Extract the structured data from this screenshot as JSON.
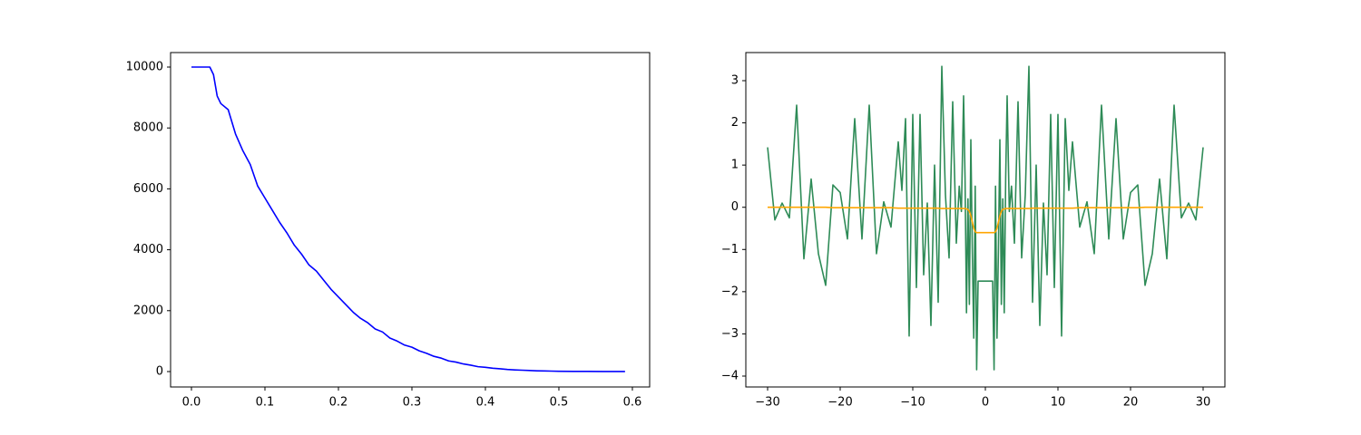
{
  "chart_data": [
    {
      "type": "line",
      "x": [
        0,
        0.01,
        0.02,
        0.025,
        0.03,
        0.035,
        0.04,
        0.05,
        0.06,
        0.07,
        0.08,
        0.09,
        0.1,
        0.11,
        0.12,
        0.13,
        0.14,
        0.15,
        0.16,
        0.17,
        0.18,
        0.19,
        0.2,
        0.21,
        0.22,
        0.23,
        0.24,
        0.25,
        0.26,
        0.27,
        0.28,
        0.29,
        0.3,
        0.31,
        0.32,
        0.33,
        0.34,
        0.35,
        0.36,
        0.37,
        0.38,
        0.39,
        0.4,
        0.41,
        0.42,
        0.43,
        0.44,
        0.45,
        0.46,
        0.47,
        0.48,
        0.49,
        0.5,
        0.52,
        0.54,
        0.56,
        0.59
      ],
      "series": [
        {
          "color": "#0000ff",
          "values": [
            10000,
            10000,
            10000,
            10000,
            9750,
            9050,
            8800,
            8600,
            7800,
            7250,
            6800,
            6100,
            5700,
            5300,
            4900,
            4550,
            4150,
            3850,
            3500,
            3300,
            3000,
            2700,
            2450,
            2200,
            1950,
            1750,
            1600,
            1400,
            1300,
            1100,
            1000,
            870,
            800,
            680,
            600,
            500,
            440,
            350,
            310,
            250,
            210,
            160,
            140,
            110,
            90,
            70,
            55,
            45,
            35,
            25,
            20,
            15,
            10,
            6,
            4,
            2,
            1
          ]
        }
      ],
      "xlim": [
        -0.0284,
        0.6235
      ],
      "ylim": [
        -506,
        10476
      ],
      "xticks": [
        {
          "value": 0,
          "label": "0.0"
        },
        0.1,
        0.2,
        0.3,
        0.4,
        0.5,
        0.6
      ],
      "yticks": [
        0,
        2000,
        4000,
        6000,
        8000,
        10000
      ],
      "grid": false
    },
    {
      "type": "line",
      "x": [
        -30,
        -29,
        -28,
        -27,
        -26,
        -25,
        -24,
        -23,
        -22,
        -21,
        -20,
        -19,
        -18,
        -17,
        -16,
        -15,
        -14,
        -13,
        -12,
        -11.5,
        -11,
        -10.5,
        -10,
        -9.5,
        -9,
        -8.5,
        -8,
        -7.5,
        -7,
        -6.5,
        -6,
        -5.5,
        -5,
        -4.5,
        -4,
        -3.6,
        -3.3,
        -3,
        -2.8,
        -2.6,
        -2.4,
        -2.2,
        -2,
        -1.8,
        -1.6,
        -1.4,
        -1.2,
        -1,
        1,
        1.2,
        1.4,
        1.6,
        1.8,
        2,
        2.2,
        2.4,
        2.6,
        2.8,
        3,
        3.3,
        3.6,
        4,
        4.5,
        5,
        5.5,
        6,
        6.5,
        7,
        7.5,
        8,
        8.5,
        9,
        9.5,
        10,
        10.5,
        11,
        11.5,
        12,
        13,
        14,
        15,
        16,
        17,
        18,
        19,
        20,
        21,
        22,
        23,
        24,
        25,
        26,
        27,
        28,
        29,
        30
      ],
      "series": [
        {
          "color": "#2e8b57",
          "values": [
            1.42,
            -0.3,
            0.1,
            -0.25,
            2.42,
            -1.22,
            0.67,
            -1.1,
            -1.85,
            0.53,
            0.35,
            -0.75,
            2.1,
            -0.75,
            2.42,
            -1.1,
            0.13,
            -0.47,
            1.55,
            0.4,
            2.1,
            -3.05,
            2.2,
            -1.9,
            2.2,
            -1.6,
            0.1,
            -2.8,
            1.0,
            -2.25,
            3.34,
            0.3,
            -1.2,
            2.5,
            -0.85,
            0.5,
            -0.1,
            2.64,
            0.7,
            -2.5,
            0.2,
            -2.3,
            1.6,
            -1.0,
            -3.1,
            0.5,
            -3.85,
            -1.75,
            -1.75,
            -3.85,
            0.5,
            -3.1,
            -1.0,
            1.6,
            -2.3,
            0.2,
            -2.5,
            0.7,
            2.64,
            -0.1,
            0.5,
            -0.85,
            2.5,
            -1.2,
            0.3,
            3.34,
            -2.25,
            1.0,
            -2.8,
            0.1,
            -1.6,
            2.2,
            -1.9,
            2.2,
            -3.05,
            2.1,
            0.4,
            1.55,
            -0.47,
            0.13,
            -1.1,
            2.42,
            -0.75,
            2.1,
            -0.75,
            0.35,
            0.53,
            -1.85,
            -1.1,
            0.67,
            -1.22,
            2.42,
            -0.25,
            0.1,
            -0.3,
            1.42
          ]
        },
        {
          "color": "#ffa500",
          "values": [
            0,
            0,
            0,
            0,
            0,
            0,
            0,
            0,
            0,
            -0.01,
            -0.01,
            -0.01,
            -0.01,
            -0.01,
            -0.01,
            -0.01,
            -0.01,
            -0.01,
            -0.02,
            -0.02,
            -0.02,
            -0.02,
            -0.02,
            -0.02,
            -0.02,
            -0.02,
            -0.02,
            -0.02,
            -0.02,
            -0.02,
            -0.03,
            -0.03,
            -0.03,
            -0.03,
            -0.03,
            -0.03,
            -0.03,
            -0.03,
            -0.03,
            -0.04,
            -0.05,
            -0.1,
            -0.2,
            -0.35,
            -0.5,
            -0.58,
            -0.6,
            -0.6,
            -0.6,
            -0.6,
            -0.58,
            -0.5,
            -0.35,
            -0.2,
            -0.1,
            -0.05,
            -0.04,
            -0.03,
            -0.03,
            -0.03,
            -0.03,
            -0.03,
            -0.03,
            -0.03,
            -0.03,
            -0.03,
            -0.02,
            -0.02,
            -0.02,
            -0.02,
            -0.02,
            -0.02,
            -0.02,
            -0.02,
            -0.02,
            -0.02,
            -0.02,
            -0.02,
            -0.01,
            -0.01,
            -0.01,
            -0.01,
            -0.01,
            -0.01,
            -0.01,
            -0.01,
            -0.01,
            0,
            0,
            0,
            0,
            0,
            0,
            0,
            0,
            0
          ]
        }
      ],
      "xlim": [
        -33,
        33
      ],
      "ylim": [
        -4.258,
        3.666
      ],
      "xticks": [
        {
          "value": -30,
          "label": "−30"
        },
        {
          "value": -20,
          "label": "−20"
        },
        {
          "value": -10,
          "label": "−10"
        },
        0,
        10,
        20,
        30
      ],
      "yticks": [
        {
          "value": -4,
          "label": "−4"
        },
        {
          "value": -3,
          "label": "−3"
        },
        {
          "value": -2,
          "label": "−2"
        },
        {
          "value": -1,
          "label": "−1"
        },
        0,
        1,
        2,
        3
      ],
      "grid": false
    }
  ]
}
